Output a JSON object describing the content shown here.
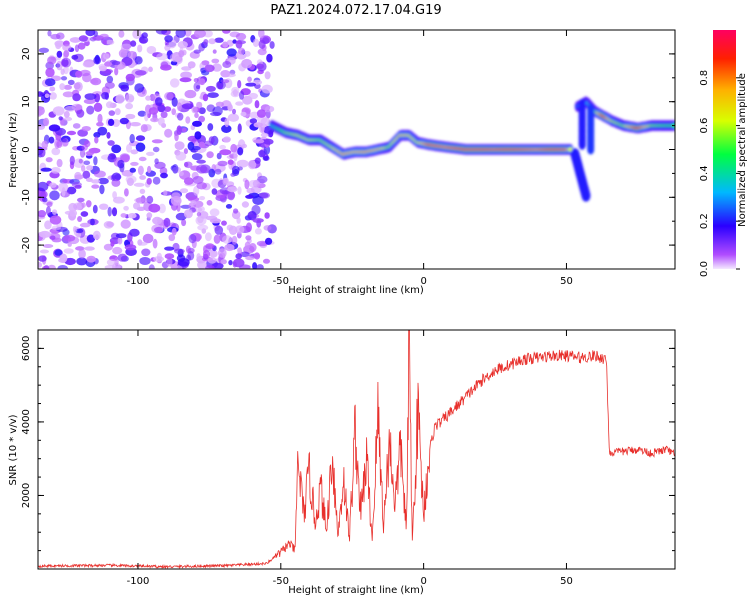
{
  "title": "PAZ1.2024.072.17.04.G19",
  "colors": {
    "snr_line": "#e8302c",
    "axis": "#000000"
  },
  "chart_data": [
    {
      "type": "heatmap",
      "title": "PAZ1.2024.072.17.04.G19",
      "xlabel": "Height of straight line (km)",
      "ylabel": "Frequency (Hz)",
      "xlim": [
        -135,
        88
      ],
      "ylim": [
        -25,
        25
      ],
      "xticks": [
        -100,
        -50,
        0,
        50
      ],
      "yticks": [
        -20,
        -10,
        0,
        10,
        20
      ],
      "colorbar": {
        "label": "Normalized spectral amplitude",
        "range": [
          0.0,
          1.0
        ],
        "ticks": [
          0.0,
          0.2,
          0.4,
          0.6,
          0.8
        ],
        "colormap": "gist_rainbow_r"
      },
      "noise_region": {
        "x_range": [
          -135,
          -53
        ],
        "amplitude": "low"
      },
      "ridge": {
        "x": [
          -53,
          -48,
          -44,
          -40,
          -36,
          -32,
          -28,
          -24,
          -20,
          -16,
          -12,
          -8,
          -5,
          -2,
          2,
          8,
          15,
          20,
          25,
          30,
          35,
          40,
          45,
          50,
          52
        ],
        "y": [
          5,
          3.5,
          3,
          2,
          2,
          0.5,
          -1,
          -0.5,
          -0.5,
          0,
          0.5,
          3,
          3,
          1.5,
          1,
          0.5,
          0,
          0,
          0,
          0,
          0,
          0,
          0,
          0,
          0
        ],
        "amplitude": [
          0.35,
          0.55,
          0.6,
          0.6,
          0.55,
          0.6,
          0.75,
          0.7,
          0.75,
          0.7,
          0.55,
          0.7,
          0.65,
          0.6,
          0.85,
          0.8,
          0.9,
          0.9,
          0.85,
          0.9,
          0.85,
          0.8,
          0.9,
          0.85,
          0.5
        ]
      },
      "drop_segment": {
        "x": [
          53,
          57
        ],
        "y": [
          -1,
          -10
        ],
        "amplitude": 0.2
      },
      "upper_segment": {
        "x": [
          54,
          57,
          60,
          63,
          66,
          70,
          75,
          80,
          85,
          88
        ],
        "y": [
          9,
          10,
          8,
          7,
          6,
          5,
          4.5,
          5,
          5,
          5
        ],
        "amplitude": [
          0.25,
          0.3,
          0.5,
          0.9,
          0.6,
          0.55,
          0.9,
          0.55,
          0.5,
          0.5
        ]
      }
    },
    {
      "type": "line",
      "xlabel": "Height of straight line (km)",
      "ylabel": "SNR (10 * v/v)",
      "xlim": [
        -135,
        88
      ],
      "ylim": [
        0,
        6500
      ],
      "xticks": [
        -100,
        -50,
        0,
        50
      ],
      "yticks": [
        2000,
        4000,
        6000
      ],
      "series": [
        {
          "x": [
            -135,
            -110,
            -90,
            -70,
            -55,
            -50,
            -47,
            -45,
            -44,
            -42,
            -40,
            -38,
            -36,
            -34,
            -32,
            -30,
            -28,
            -26,
            -24,
            -22,
            -20,
            -18,
            -16,
            -14,
            -12,
            -10,
            -8,
            -6,
            -5,
            -4,
            -2,
            0,
            2,
            4,
            6,
            10,
            15,
            20,
            25,
            30,
            35,
            40,
            45,
            50,
            55,
            60,
            64,
            65,
            66,
            70,
            75,
            80,
            85,
            88
          ],
          "y": [
            80,
            100,
            60,
            90,
            150,
            450,
            700,
            500,
            3000,
            1500,
            2600,
            1300,
            2200,
            1000,
            3200,
            900,
            2500,
            800,
            3800,
            1500,
            3000,
            800,
            4200,
            1200,
            3500,
            1800,
            3300,
            1000,
            6500,
            600,
            4300,
            1500,
            3200,
            3900,
            4000,
            4300,
            4700,
            5100,
            5400,
            5550,
            5700,
            5750,
            5800,
            5800,
            5750,
            5800,
            5700,
            3200,
            3150,
            3200,
            3250,
            3150,
            3250,
            3100
          ]
        }
      ]
    }
  ]
}
